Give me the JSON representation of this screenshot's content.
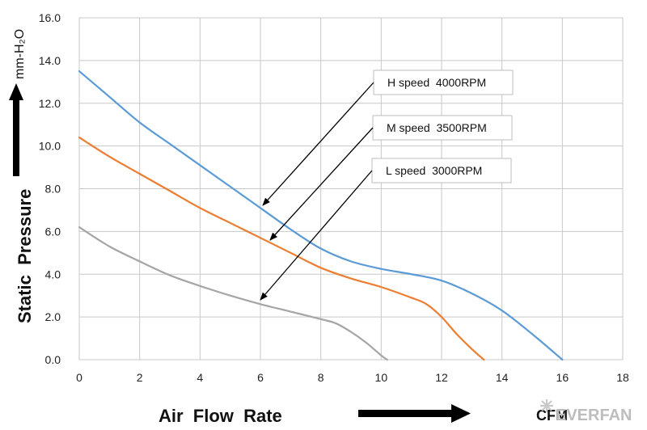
{
  "chart_data": {
    "type": "line",
    "xlabel": "Air  Flow  Rate",
    "ylabel": "Static  Pressure",
    "y_unit": "mm-H₂O",
    "x_unit": "CFM",
    "xlim": [
      0,
      18
    ],
    "ylim": [
      0,
      16
    ],
    "x_ticks": [
      "0",
      "2",
      "4",
      "6",
      "8",
      "10",
      "12",
      "14",
      "16",
      "18"
    ],
    "y_ticks": [
      "0.0",
      "2.0",
      "4.0",
      "6.0",
      "8.0",
      "10.0",
      "12.0",
      "14.0",
      "16.0"
    ],
    "grid": true,
    "series": [
      {
        "name": "H speed  4000RPM",
        "color": "#5b9bd5",
        "x": [
          0,
          1,
          2,
          3,
          4,
          5,
          6,
          7,
          8,
          9,
          10,
          11,
          12,
          13,
          14,
          15,
          16
        ],
        "y": [
          13.5,
          12.3,
          11.1,
          10.1,
          9.1,
          8.1,
          7.1,
          6.1,
          5.2,
          4.6,
          4.25,
          4.0,
          3.7,
          3.1,
          2.3,
          1.2,
          0.0
        ]
      },
      {
        "name": "M speed  3500RPM",
        "color": "#ed7d31",
        "x": [
          0,
          1,
          2,
          3,
          4,
          5,
          6,
          7,
          8,
          9,
          10,
          11,
          11.5,
          12,
          12.5,
          13,
          13.4
        ],
        "y": [
          10.4,
          9.5,
          8.7,
          7.9,
          7.1,
          6.4,
          5.7,
          5.0,
          4.3,
          3.8,
          3.4,
          2.9,
          2.6,
          2.0,
          1.2,
          0.5,
          0.0
        ]
      },
      {
        "name": "L speed  3000RPM",
        "color": "#a5a5a5",
        "x": [
          0,
          1,
          2,
          3,
          4,
          5,
          6,
          7,
          8,
          8.5,
          9,
          9.5,
          10,
          10.2
        ],
        "y": [
          6.2,
          5.3,
          4.6,
          3.95,
          3.45,
          3.0,
          2.6,
          2.25,
          1.9,
          1.7,
          1.3,
          0.8,
          0.2,
          0.0
        ]
      }
    ],
    "annotations": [
      "H speed  4000RPM",
      "M speed  3500RPM",
      "L speed  3000RPM"
    ]
  },
  "watermark": "EVERFAN"
}
